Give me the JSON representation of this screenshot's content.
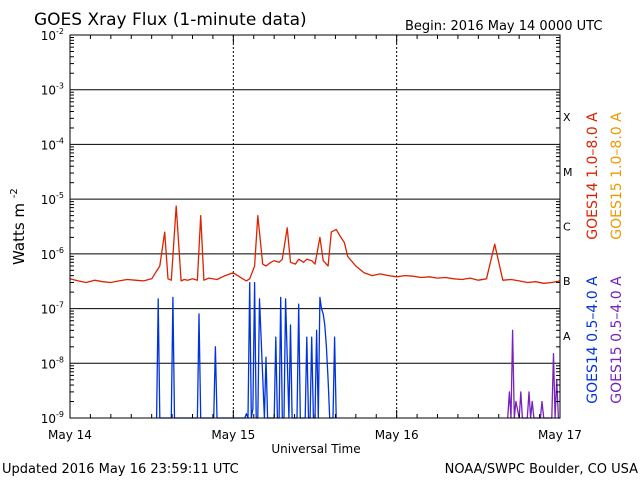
{
  "chart_data": {
    "type": "line",
    "title": "GOES Xray Flux (1-minute data)",
    "begin_label": "Begin:  2016 May 14 0000 UTC",
    "ylabel": "Watts m",
    "ylabel_sup": "-2",
    "xlabel": "Universal Time",
    "y_scale": "log",
    "ylim": [
      1e-09,
      0.01
    ],
    "y_ticks": [
      {
        "mant": "10",
        "exp": "-2",
        "value": 0.01
      },
      {
        "mant": "10",
        "exp": "-3",
        "value": 0.001
      },
      {
        "mant": "10",
        "exp": "-4",
        "value": 0.0001
      },
      {
        "mant": "10",
        "exp": "-5",
        "value": 1e-05
      },
      {
        "mant": "10",
        "exp": "-6",
        "value": 1e-06
      },
      {
        "mant": "10",
        "exp": "-7",
        "value": 1e-07
      },
      {
        "mant": "10",
        "exp": "-8",
        "value": 1e-08
      },
      {
        "mant": "10",
        "exp": "-9",
        "value": 1e-09
      }
    ],
    "x_range_days": [
      0,
      3
    ],
    "x_ticks": [
      {
        "label": "May 14",
        "day": 0
      },
      {
        "label": "May 15",
        "day": 1
      },
      {
        "label": "May 16",
        "day": 2
      },
      {
        "label": "May 17",
        "day": 3
      }
    ],
    "flare_classes": [
      {
        "label": "X",
        "lower": 0.0001,
        "upper": 0.001
      },
      {
        "label": "M",
        "lower": 1e-05,
        "upper": 0.0001
      },
      {
        "label": "C",
        "lower": 1e-06,
        "upper": 1e-05
      },
      {
        "label": "B",
        "lower": 1e-07,
        "upper": 1e-06
      },
      {
        "label": "A",
        "lower": 1e-08,
        "upper": 1e-07
      }
    ],
    "legend_right": [
      {
        "text": "GOES14 1.0–8.0 A",
        "color": "#dd2200"
      },
      {
        "text": "GOES15 1.0–8.0 A",
        "color": "#ee9900"
      }
    ],
    "legend_right2": [
      {
        "text": "GOES14 0.5–4.0 A",
        "color": "#0033dd"
      },
      {
        "text": "GOES15 0.5–4.0 A",
        "color": "#7722bb"
      }
    ],
    "series": [
      {
        "name": "GOES14 1.0–8.0 A",
        "color": "#dd2200",
        "x": [
          0.0,
          0.05,
          0.1,
          0.15,
          0.2,
          0.25,
          0.3,
          0.35,
          0.4,
          0.45,
          0.5,
          0.55,
          0.58,
          0.6,
          0.62,
          0.65,
          0.68,
          0.7,
          0.72,
          0.75,
          0.78,
          0.8,
          0.82,
          0.85,
          0.9,
          0.95,
          1.0,
          1.05,
          1.08,
          1.1,
          1.13,
          1.15,
          1.18,
          1.2,
          1.23,
          1.25,
          1.28,
          1.3,
          1.33,
          1.35,
          1.38,
          1.4,
          1.43,
          1.45,
          1.48,
          1.5,
          1.53,
          1.55,
          1.58,
          1.6,
          1.63,
          1.65,
          1.68,
          1.7,
          1.75,
          1.8,
          1.85,
          1.9,
          1.95,
          2.0,
          2.05,
          2.1,
          2.15,
          2.2,
          2.25,
          2.3,
          2.35,
          2.4,
          2.45,
          2.5,
          2.55,
          2.6,
          2.65,
          2.7,
          2.75,
          2.8,
          2.85,
          2.9,
          2.95,
          3.0
        ],
        "y": [
          3.5e-07,
          3.2e-07,
          3e-07,
          3.3e-07,
          3.1e-07,
          3e-07,
          3.2e-07,
          3.4e-07,
          3.3e-07,
          3.2e-07,
          3.5e-07,
          6e-07,
          2.5e-06,
          3.5e-07,
          3.3e-07,
          7.5e-06,
          3.2e-07,
          3.4e-07,
          3.3e-07,
          3.5e-07,
          3.3e-07,
          5e-06,
          3.3e-07,
          3.6e-07,
          3.4e-07,
          4e-07,
          4.5e-07,
          3.6e-07,
          3.2e-07,
          3.5e-07,
          6e-07,
          5e-06,
          6.5e-07,
          6e-07,
          7e-07,
          7.5e-07,
          7e-07,
          8e-07,
          3e-06,
          7e-07,
          6.5e-07,
          8e-07,
          7e-07,
          8e-07,
          7.5e-07,
          6.5e-07,
          2e-06,
          7.5e-07,
          6e-07,
          2.5e-06,
          2.8e-06,
          2.2e-06,
          1.6e-06,
          9e-07,
          6e-07,
          4.5e-07,
          4e-07,
          4.3e-07,
          4e-07,
          3.8e-07,
          4e-07,
          3.9e-07,
          3.7e-07,
          3.8e-07,
          3.6e-07,
          3.7e-07,
          3.5e-07,
          3.4e-07,
          3.6e-07,
          3.3e-07,
          3.5e-07,
          1.5e-06,
          3.3e-07,
          3.4e-07,
          3.2e-07,
          3e-07,
          3.1e-07,
          2.9e-07,
          3e-07,
          3.2e-07
        ]
      },
      {
        "name": "GOES14 0.5–4.0 A",
        "color": "#0033dd",
        "x": [
          0.53,
          0.54,
          0.55,
          0.62,
          0.63,
          0.64,
          0.78,
          0.79,
          0.8,
          0.88,
          0.89,
          0.9,
          1.07,
          1.08,
          1.09,
          1.1,
          1.11,
          1.12,
          1.13,
          1.14,
          1.15,
          1.16,
          1.19,
          1.2,
          1.21,
          1.25,
          1.26,
          1.27,
          1.28,
          1.29,
          1.3,
          1.31,
          1.32,
          1.34,
          1.35,
          1.36,
          1.39,
          1.4,
          1.41,
          1.44,
          1.45,
          1.46,
          1.47,
          1.48,
          1.49,
          1.5,
          1.51,
          1.52,
          1.53,
          1.54,
          1.55,
          1.56,
          1.57,
          1.58,
          1.59,
          1.61,
          1.62,
          1.63
        ],
        "y": [
          1e-09,
          1.5e-07,
          1e-09,
          1e-09,
          1.6e-07,
          1e-09,
          1e-09,
          8e-08,
          1e-09,
          1e-09,
          2e-08,
          1e-09,
          1e-09,
          1.2e-09,
          1e-09,
          3e-07,
          1e-09,
          1.5e-09,
          3e-07,
          1e-09,
          1e-09,
          1.5e-07,
          1e-09,
          1.3e-08,
          1e-09,
          1e-09,
          3e-08,
          1e-09,
          1e-09,
          1.6e-07,
          1e-09,
          1e-09,
          1.5e-07,
          1e-09,
          5e-08,
          1e-09,
          1e-09,
          1.2e-07,
          1e-09,
          1e-09,
          3e-08,
          1e-09,
          1e-09,
          3e-08,
          1e-09,
          1e-09,
          4e-08,
          1e-09,
          1.6e-07,
          1e-07,
          8e-08,
          5e-08,
          2e-08,
          5e-09,
          1e-09,
          1e-09,
          3e-08,
          1e-09
        ]
      },
      {
        "name": "GOES15 0.5–4.0 A",
        "color": "#7722bb",
        "x": [
          2.68,
          2.69,
          2.7,
          2.71,
          2.72,
          2.73,
          2.75,
          2.76,
          2.77,
          2.8,
          2.81,
          2.82,
          2.83,
          2.84,
          2.85,
          2.88,
          2.89,
          2.9,
          2.95,
          2.96,
          2.97,
          2.98,
          2.99,
          3.0
        ],
        "y": [
          1e-09,
          3e-09,
          1e-09,
          4e-08,
          1e-09,
          2e-09,
          1e-09,
          3e-09,
          1e-09,
          1e-09,
          3e-09,
          1e-09,
          2e-09,
          1e-09,
          1e-09,
          1e-09,
          2e-09,
          1e-09,
          1e-09,
          1.5e-08,
          1e-09,
          5e-09,
          1e-09,
          1e-09
        ]
      }
    ]
  },
  "footer": {
    "updated": "Updated 2016 May 16 23:59:11 UTC",
    "credit": "NOAA/SWPC Boulder, CO USA"
  }
}
